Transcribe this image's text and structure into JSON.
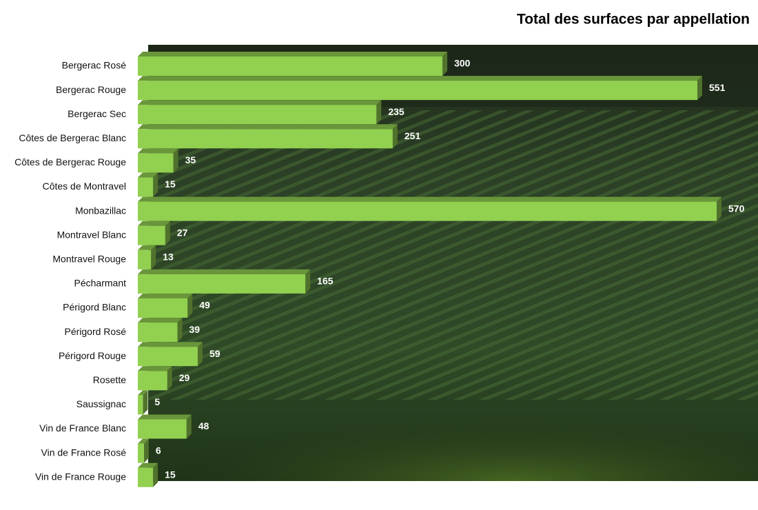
{
  "chart_data": {
    "type": "bar3d",
    "title": "Total des surfaces par appellation",
    "categories": [
      "Bergerac Rosé",
      "Bergerac Rouge",
      "Bergerac Sec",
      "Côtes de Bergerac Blanc",
      "Côtes de Bergerac Rouge",
      "Côtes de Montravel",
      "Monbazillac",
      "Montravel Blanc",
      "Montravel Rouge",
      "Pécharmant",
      "Périgord Blanc",
      "Périgord Rosé",
      "Périgord Rouge",
      "Rosette",
      "Saussignac",
      "Vin de France Blanc",
      "Vin de France Rosé",
      "Vin de France Rouge"
    ],
    "values": [
      300,
      551,
      235,
      251,
      35,
      15,
      570,
      27,
      13,
      165,
      49,
      39,
      59,
      29,
      5,
      48,
      6,
      15
    ],
    "color": "#92d050"
  }
}
